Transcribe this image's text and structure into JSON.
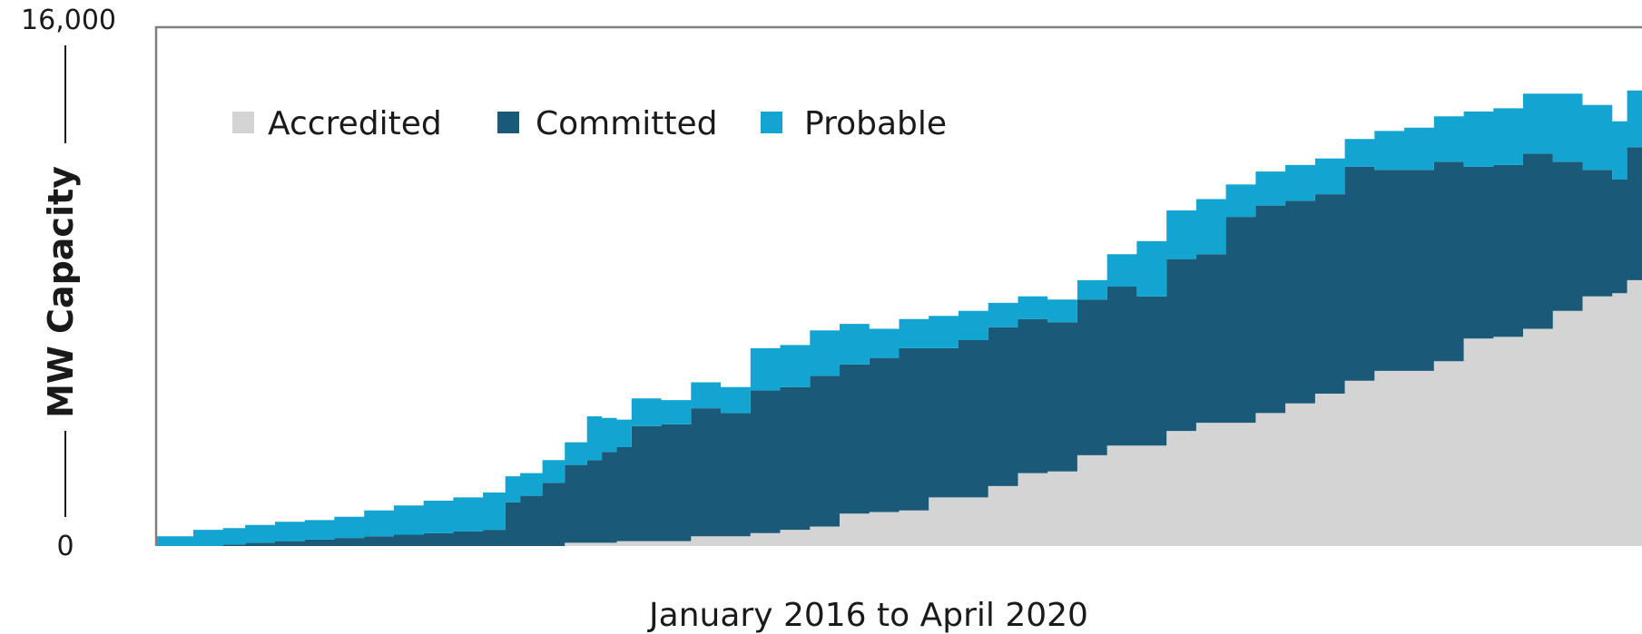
{
  "chart_data": {
    "type": "area",
    "stacked": true,
    "ylabel": "MW Capacity",
    "xlabel": "January 2016 to April 2020",
    "yticks": [
      "0",
      "16,000"
    ],
    "ylim": [
      0,
      16000
    ],
    "xlim": [
      0,
      1
    ],
    "grid": false,
    "legend_position": "top-left",
    "x": [
      0.0,
      0.015,
      0.025,
      0.045,
      0.06,
      0.08,
      0.1,
      0.12,
      0.14,
      0.16,
      0.18,
      0.2,
      0.22,
      0.235,
      0.245,
      0.26,
      0.275,
      0.29,
      0.3,
      0.31,
      0.32,
      0.34,
      0.36,
      0.38,
      0.4,
      0.42,
      0.44,
      0.46,
      0.48,
      0.5,
      0.52,
      0.54,
      0.56,
      0.58,
      0.6,
      0.62,
      0.64,
      0.66,
      0.68,
      0.7,
      0.72,
      0.74,
      0.76,
      0.78,
      0.8,
      0.82,
      0.84,
      0.86,
      0.88,
      0.9,
      0.92,
      0.94,
      0.96,
      0.98,
      0.99,
      1.0
    ],
    "series": [
      {
        "name": "Accredited",
        "color": "#d4d4d4",
        "values": [
          0,
          0,
          0,
          0,
          0,
          0,
          0,
          0,
          0,
          0,
          0,
          0,
          0,
          0,
          0,
          0,
          100,
          100,
          100,
          150,
          150,
          150,
          300,
          300,
          400,
          500,
          600,
          1000,
          1050,
          1100,
          1500,
          1500,
          1850,
          2250,
          2300,
          2800,
          3100,
          3100,
          3550,
          3800,
          3800,
          4100,
          4400,
          4700,
          5100,
          5400,
          5400,
          5700,
          6400,
          6450,
          6700,
          7250,
          7700,
          7800,
          8200,
          9300
        ]
      },
      {
        "name": "Committed",
        "color": "#1a5a78",
        "values": [
          0,
          0,
          0,
          50,
          100,
          150,
          200,
          250,
          300,
          350,
          400,
          450,
          500,
          1350,
          1550,
          1950,
          2400,
          2550,
          2800,
          2900,
          3550,
          3600,
          3950,
          3800,
          4400,
          4400,
          4650,
          4600,
          4750,
          5000,
          4600,
          4850,
          4900,
          4750,
          4600,
          4800,
          4900,
          4600,
          5300,
          5200,
          6350,
          6400,
          6250,
          6150,
          6600,
          6200,
          6200,
          6150,
          5300,
          5300,
          5400,
          4600,
          3900,
          3500,
          4100,
          3900
        ]
      },
      {
        "name": "Probable",
        "color": "#12a5d2",
        "values": [
          300,
          300,
          500,
          500,
          550,
          600,
          600,
          650,
          800,
          900,
          1000,
          1050,
          1150,
          800,
          700,
          700,
          700,
          1350,
          1050,
          850,
          850,
          750,
          800,
          800,
          1300,
          1300,
          1400,
          1250,
          900,
          900,
          1000,
          900,
          750,
          700,
          700,
          600,
          1000,
          1700,
          1500,
          1700,
          1000,
          1050,
          1100,
          1100,
          850,
          1200,
          1300,
          1400,
          1700,
          1750,
          1850,
          2100,
          2000,
          1800,
          1750,
          1900
        ]
      }
    ]
  }
}
